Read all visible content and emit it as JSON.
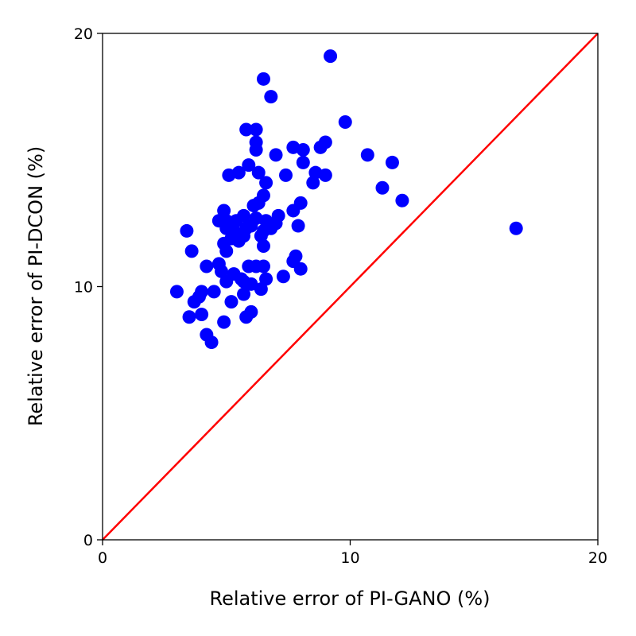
{
  "chart_data": {
    "type": "scatter",
    "title": "",
    "xlabel": "Relative error of PI-GANO (%)",
    "ylabel": "Relative error of PI-DCON (%)",
    "xlim": [
      0,
      20
    ],
    "ylim": [
      0,
      20
    ],
    "xticks": [
      "0",
      "10",
      "20"
    ],
    "yticks": [
      "0",
      "10",
      "20"
    ],
    "grid": false,
    "legend": "none",
    "colors": {
      "points": "#0000ff",
      "reference_line": "#ff0000",
      "axes": "#000000"
    },
    "reference_line": {
      "x": [
        0,
        20
      ],
      "y": [
        0,
        20
      ]
    },
    "series": [
      {
        "points": [
          [
            9.2,
            19.1
          ],
          [
            6.5,
            18.2
          ],
          [
            6.8,
            17.5
          ],
          [
            9.8,
            16.5
          ],
          [
            5.8,
            16.2
          ],
          [
            6.2,
            16.2
          ],
          [
            6.2,
            15.7
          ],
          [
            6.2,
            15.4
          ],
          [
            7.7,
            15.5
          ],
          [
            8.1,
            15.4
          ],
          [
            8.8,
            15.5
          ],
          [
            9.0,
            15.7
          ],
          [
            7.0,
            15.2
          ],
          [
            10.7,
            15.2
          ],
          [
            11.7,
            14.9
          ],
          [
            8.1,
            14.9
          ],
          [
            5.9,
            14.8
          ],
          [
            5.5,
            14.5
          ],
          [
            5.1,
            14.4
          ],
          [
            6.3,
            14.5
          ],
          [
            7.4,
            14.4
          ],
          [
            8.6,
            14.5
          ],
          [
            9.0,
            14.4
          ],
          [
            8.5,
            14.1
          ],
          [
            6.6,
            14.1
          ],
          [
            11.3,
            13.9
          ],
          [
            6.5,
            13.6
          ],
          [
            12.1,
            13.4
          ],
          [
            6.1,
            13.2
          ],
          [
            6.3,
            13.3
          ],
          [
            8.0,
            13.3
          ],
          [
            7.7,
            13.0
          ],
          [
            4.9,
            13.0
          ],
          [
            7.1,
            12.8
          ],
          [
            5.7,
            12.8
          ],
          [
            4.7,
            12.6
          ],
          [
            5.0,
            12.6
          ],
          [
            5.4,
            12.6
          ],
          [
            6.2,
            12.7
          ],
          [
            6.6,
            12.6
          ],
          [
            7.0,
            12.5
          ],
          [
            3.4,
            12.2
          ],
          [
            5.0,
            12.3
          ],
          [
            5.3,
            12.2
          ],
          [
            5.8,
            12.3
          ],
          [
            6.0,
            12.4
          ],
          [
            6.5,
            12.2
          ],
          [
            6.8,
            12.3
          ],
          [
            7.9,
            12.4
          ],
          [
            16.7,
            12.3
          ],
          [
            6.4,
            12.0
          ],
          [
            5.2,
            11.9
          ],
          [
            5.7,
            12.0
          ],
          [
            5.5,
            11.8
          ],
          [
            4.9,
            11.7
          ],
          [
            6.5,
            11.6
          ],
          [
            5.0,
            11.4
          ],
          [
            3.6,
            11.4
          ],
          [
            7.8,
            11.2
          ],
          [
            7.7,
            11.0
          ],
          [
            4.2,
            10.8
          ],
          [
            4.7,
            10.9
          ],
          [
            5.9,
            10.8
          ],
          [
            6.2,
            10.8
          ],
          [
            6.5,
            10.8
          ],
          [
            8.0,
            10.7
          ],
          [
            4.8,
            10.6
          ],
          [
            5.3,
            10.5
          ],
          [
            5.6,
            10.3
          ],
          [
            6.6,
            10.3
          ],
          [
            7.3,
            10.4
          ],
          [
            5.0,
            10.2
          ],
          [
            5.7,
            10.2
          ],
          [
            6.0,
            10.1
          ],
          [
            6.4,
            9.9
          ],
          [
            4.0,
            9.8
          ],
          [
            4.5,
            9.8
          ],
          [
            3.0,
            9.8
          ],
          [
            5.7,
            9.7
          ],
          [
            3.9,
            9.6
          ],
          [
            3.7,
            9.4
          ],
          [
            5.2,
            9.4
          ],
          [
            6.0,
            9.0
          ],
          [
            4.0,
            8.9
          ],
          [
            5.8,
            8.8
          ],
          [
            3.5,
            8.8
          ],
          [
            4.9,
            8.6
          ],
          [
            4.2,
            8.1
          ],
          [
            4.4,
            7.8
          ]
        ]
      }
    ]
  }
}
